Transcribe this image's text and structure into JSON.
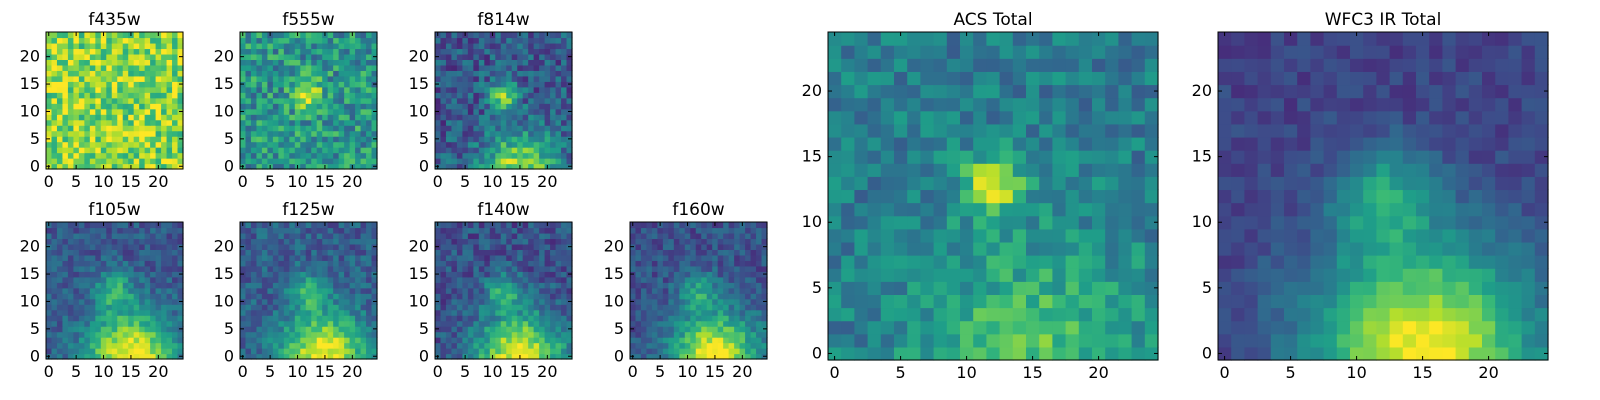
{
  "figure": {
    "colormap": "viridis",
    "colors": {
      "low": "#440154",
      "mid": "#21918c",
      "high": "#fde725",
      "axis": "#000000",
      "background": "#ffffff"
    }
  },
  "chart_data": [
    {
      "type": "heatmap",
      "title": "f435w",
      "grid_size": 25,
      "xlim": [
        -0.5,
        24.5
      ],
      "ylim": [
        -0.5,
        24.5
      ],
      "xticks": [
        0,
        5,
        10,
        15,
        20
      ],
      "yticks": [
        0,
        5,
        10,
        15,
        20
      ],
      "origin": "lower",
      "intensity_model": {
        "background": 0.82,
        "noise": 0.22,
        "sources": []
      }
    },
    {
      "type": "heatmap",
      "title": "f555w",
      "grid_size": 25,
      "xlim": [
        -0.5,
        24.5
      ],
      "ylim": [
        -0.5,
        24.5
      ],
      "xticks": [
        0,
        5,
        10,
        15,
        20
      ],
      "yticks": [
        0,
        5,
        10,
        15,
        20
      ],
      "origin": "lower",
      "intensity_model": {
        "background": 0.52,
        "noise": 0.22,
        "sources": [
          {
            "x": 12,
            "y": 13,
            "amp": 0.45,
            "sigma": 1.8
          }
        ]
      }
    },
    {
      "type": "heatmap",
      "title": "f814w",
      "grid_size": 25,
      "xlim": [
        -0.5,
        24.5
      ],
      "ylim": [
        -0.5,
        24.5
      ],
      "xticks": [
        0,
        5,
        10,
        15,
        20
      ],
      "yticks": [
        0,
        5,
        10,
        15,
        20
      ],
      "origin": "lower",
      "intensity_model": {
        "background": 0.28,
        "noise": 0.18,
        "sources": [
          {
            "x": 12,
            "y": 13,
            "amp": 0.55,
            "sigma": 1.8
          },
          {
            "x": 15,
            "y": 0,
            "amp": 0.6,
            "sigma": 4.5
          }
        ]
      }
    },
    {
      "type": "heatmap",
      "title": "f105w",
      "grid_size": 25,
      "xlim": [
        -0.5,
        24.5
      ],
      "ylim": [
        -0.5,
        24.5
      ],
      "xticks": [
        0,
        5,
        10,
        15,
        20
      ],
      "yticks": [
        0,
        5,
        10,
        15,
        20
      ],
      "origin": "lower",
      "intensity_model": {
        "background": 0.28,
        "noise": 0.12,
        "sources": [
          {
            "x": 12,
            "y": 12,
            "amp": 0.35,
            "sigma": 2.5
          },
          {
            "x": 15,
            "y": 0,
            "amp": 0.75,
            "sigma": 5.5
          }
        ]
      }
    },
    {
      "type": "heatmap",
      "title": "f125w",
      "grid_size": 25,
      "xlim": [
        -0.5,
        24.5
      ],
      "ylim": [
        -0.5,
        24.5
      ],
      "xticks": [
        0,
        5,
        10,
        15,
        20
      ],
      "yticks": [
        0,
        5,
        10,
        15,
        20
      ],
      "origin": "lower",
      "intensity_model": {
        "background": 0.3,
        "noise": 0.13,
        "sources": [
          {
            "x": 12,
            "y": 12,
            "amp": 0.3,
            "sigma": 2.5
          },
          {
            "x": 15,
            "y": 0,
            "amp": 0.7,
            "sigma": 5.5
          }
        ]
      }
    },
    {
      "type": "heatmap",
      "title": "f140w",
      "grid_size": 25,
      "xlim": [
        -0.5,
        24.5
      ],
      "ylim": [
        -0.5,
        24.5
      ],
      "xticks": [
        0,
        5,
        10,
        15,
        20
      ],
      "yticks": [
        0,
        5,
        10,
        15,
        20
      ],
      "origin": "lower",
      "intensity_model": {
        "background": 0.25,
        "noise": 0.14,
        "sources": [
          {
            "x": 12,
            "y": 12,
            "amp": 0.35,
            "sigma": 2.2
          },
          {
            "x": 15,
            "y": 0,
            "amp": 0.75,
            "sigma": 5.5
          }
        ]
      }
    },
    {
      "type": "heatmap",
      "title": "f160w",
      "grid_size": 25,
      "xlim": [
        -0.5,
        24.5
      ],
      "ylim": [
        -0.5,
        24.5
      ],
      "xticks": [
        0,
        5,
        10,
        15,
        20
      ],
      "yticks": [
        0,
        5,
        10,
        15,
        20
      ],
      "origin": "lower",
      "intensity_model": {
        "background": 0.25,
        "noise": 0.12,
        "sources": [
          {
            "x": 12,
            "y": 12,
            "amp": 0.3,
            "sigma": 2.5
          },
          {
            "x": 15,
            "y": 0,
            "amp": 0.75,
            "sigma": 5.5
          }
        ]
      }
    },
    {
      "type": "heatmap",
      "title": "ACS Total",
      "grid_size": 25,
      "xlim": [
        -0.5,
        24.5
      ],
      "ylim": [
        -0.5,
        24.5
      ],
      "xticks": [
        0,
        5,
        10,
        15,
        20
      ],
      "yticks": [
        0,
        5,
        10,
        15,
        20
      ],
      "origin": "lower",
      "intensity_model": {
        "background": 0.42,
        "noise": 0.14,
        "sources": [
          {
            "x": 12,
            "y": 13,
            "amp": 0.5,
            "sigma": 1.6
          },
          {
            "x": 15,
            "y": 0,
            "amp": 0.3,
            "sigma": 6
          }
        ]
      }
    },
    {
      "type": "heatmap",
      "title": "WFC3 IR Total",
      "grid_size": 25,
      "xlim": [
        -0.5,
        24.5
      ],
      "ylim": [
        -0.5,
        24.5
      ],
      "xticks": [
        0,
        5,
        10,
        15,
        20
      ],
      "yticks": [
        0,
        5,
        10,
        15,
        20
      ],
      "origin": "lower",
      "intensity_model": {
        "background": 0.2,
        "noise": 0.07,
        "sources": [
          {
            "x": 12,
            "y": 12,
            "amp": 0.35,
            "sigma": 2.6
          },
          {
            "x": 15,
            "y": 0,
            "amp": 0.8,
            "sigma": 6
          }
        ]
      }
    }
  ]
}
